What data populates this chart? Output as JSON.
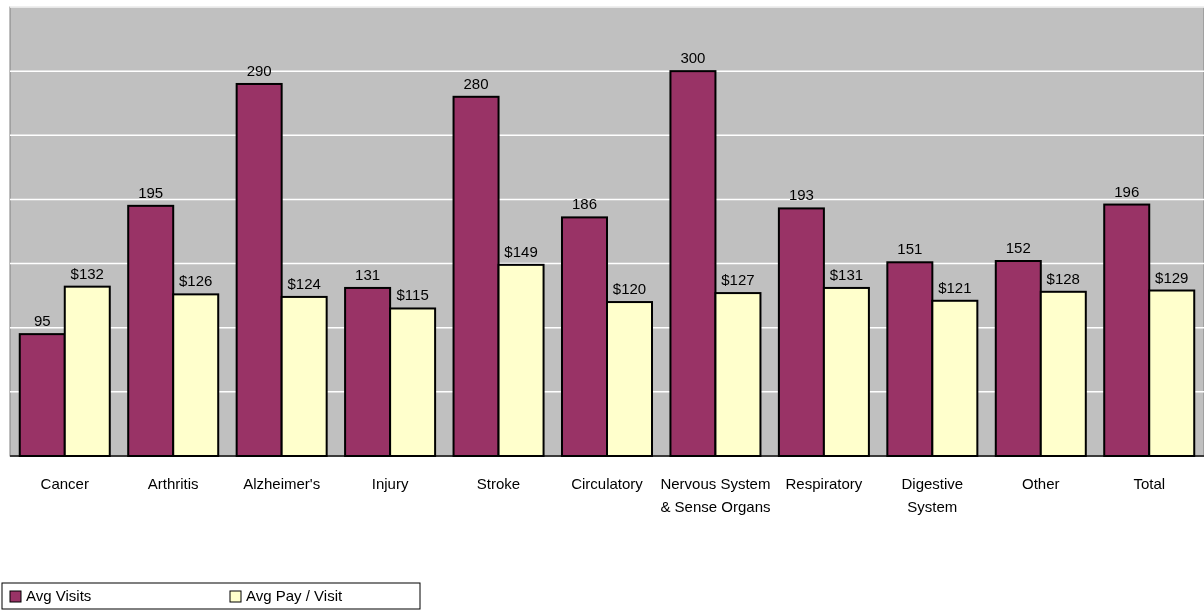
{
  "chart_data": {
    "type": "bar",
    "categories": [
      "Cancer",
      "Arthritis",
      "Alzheimer's",
      "Injury",
      "Stroke",
      "Circulatory",
      "Nervous System & Sense Organs",
      "Respiratory",
      "Digestive System",
      "Other",
      "Total"
    ],
    "series": [
      {
        "name": "Avg Visits",
        "color": "#993366",
        "values": [
          95,
          195,
          290,
          131,
          280,
          186,
          300,
          193,
          151,
          152,
          196
        ],
        "value_labels": [
          "95",
          "195",
          "290",
          "131",
          "280",
          "186",
          "300",
          "193",
          "151",
          "152",
          "196"
        ]
      },
      {
        "name": "Avg Pay / Visit",
        "color": "#ffffcc",
        "values": [
          132,
          126,
          124,
          115,
          149,
          120,
          127,
          131,
          121,
          128,
          129
        ],
        "value_labels": [
          "$132",
          "$126",
          "$124",
          "$115",
          "$149",
          "$120",
          "$127",
          "$131",
          "$121",
          "$128",
          "$129"
        ]
      }
    ],
    "ylim": [
      0,
      350
    ],
    "yticks": [
      {
        "value": 0,
        "label": null
      },
      {
        "value": 50,
        "label": null
      },
      {
        "value": 100,
        "label": null
      },
      {
        "value": 150,
        "label": null
      },
      {
        "value": 200,
        "label": null
      },
      {
        "value": 250,
        "label": null
      },
      {
        "value": 300,
        "label": null
      },
      {
        "value": 350,
        "label": null
      }
    ],
    "grid": "y",
    "tick_labels": "x",
    "legend": "bottom left"
  }
}
